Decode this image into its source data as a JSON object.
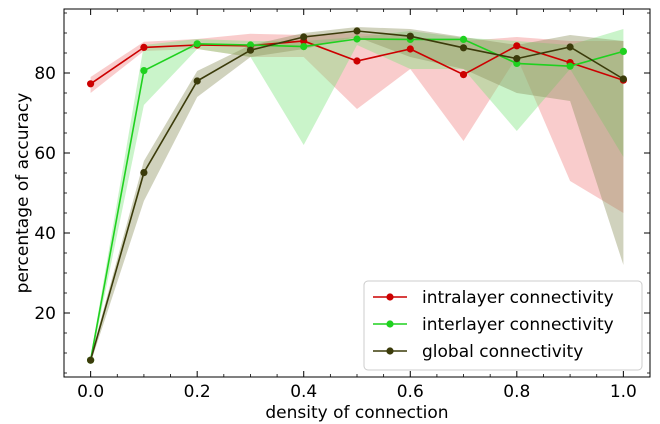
{
  "chart_data": {
    "type": "line",
    "title": "",
    "xlabel": "density of connection",
    "ylabel": "percentage of accuracy",
    "xlim": [
      -0.05,
      1.05
    ],
    "ylim": [
      4,
      96
    ],
    "xticks": [
      0.0,
      0.2,
      0.4,
      0.6,
      0.8,
      1.0
    ],
    "xtick_labels": [
      "0.0",
      "0.2",
      "0.4",
      "0.6",
      "0.8",
      "1.0"
    ],
    "yticks": [
      20,
      40,
      60,
      80
    ],
    "ytick_labels": [
      "20",
      "40",
      "60",
      "80"
    ],
    "x": [
      0.0,
      0.1,
      0.2,
      0.3,
      0.4,
      0.5,
      0.6,
      0.7,
      0.8,
      0.9,
      1.0
    ],
    "legend_position": "lower-right",
    "grid": false,
    "series": [
      {
        "name": "intralayer connectivity",
        "color": "#cc0000",
        "band_color": "#f08080",
        "values": [
          77.3,
          86.4,
          87.0,
          86.8,
          88.0,
          83.0,
          86.0,
          79.6,
          86.8,
          82.6,
          78.2
        ],
        "lower": [
          75.0,
          85.5,
          86.0,
          84.0,
          84.0,
          71.0,
          81.0,
          63.0,
          84.0,
          53.0,
          45.0
        ],
        "upper": [
          79.0,
          87.8,
          88.5,
          89.8,
          89.5,
          90.0,
          89.0,
          88.0,
          89.0,
          88.0,
          88.0
        ]
      },
      {
        "name": "interlayer connectivity",
        "color": "#1fd11f",
        "band_color": "#7ae37a",
        "values": [
          8.2,
          80.6,
          87.3,
          87.0,
          86.6,
          88.5,
          88.4,
          88.4,
          82.4,
          81.7,
          85.4
        ],
        "lower": [
          7.5,
          72.0,
          86.0,
          84.0,
          62.0,
          87.0,
          81.0,
          81.0,
          65.5,
          81.0,
          59.0
        ],
        "upper": [
          9.0,
          87.0,
          88.5,
          88.0,
          88.0,
          89.0,
          90.5,
          88.8,
          88.0,
          87.0,
          91.0
        ]
      },
      {
        "name": "global connectivity",
        "color": "#3b3b0a",
        "band_color": "#8a8f5a",
        "values": [
          8.2,
          55.1,
          78.0,
          85.7,
          89.0,
          90.5,
          89.2,
          86.3,
          83.6,
          86.5,
          78.5
        ],
        "lower": [
          7.5,
          48.0,
          74.0,
          84.0,
          86.0,
          89.0,
          84.0,
          81.0,
          75.0,
          73.0,
          32.0
        ],
        "upper": [
          9.0,
          58.0,
          80.5,
          87.0,
          90.0,
          91.5,
          91.0,
          89.0,
          87.0,
          89.5,
          88.0
        ]
      }
    ]
  }
}
